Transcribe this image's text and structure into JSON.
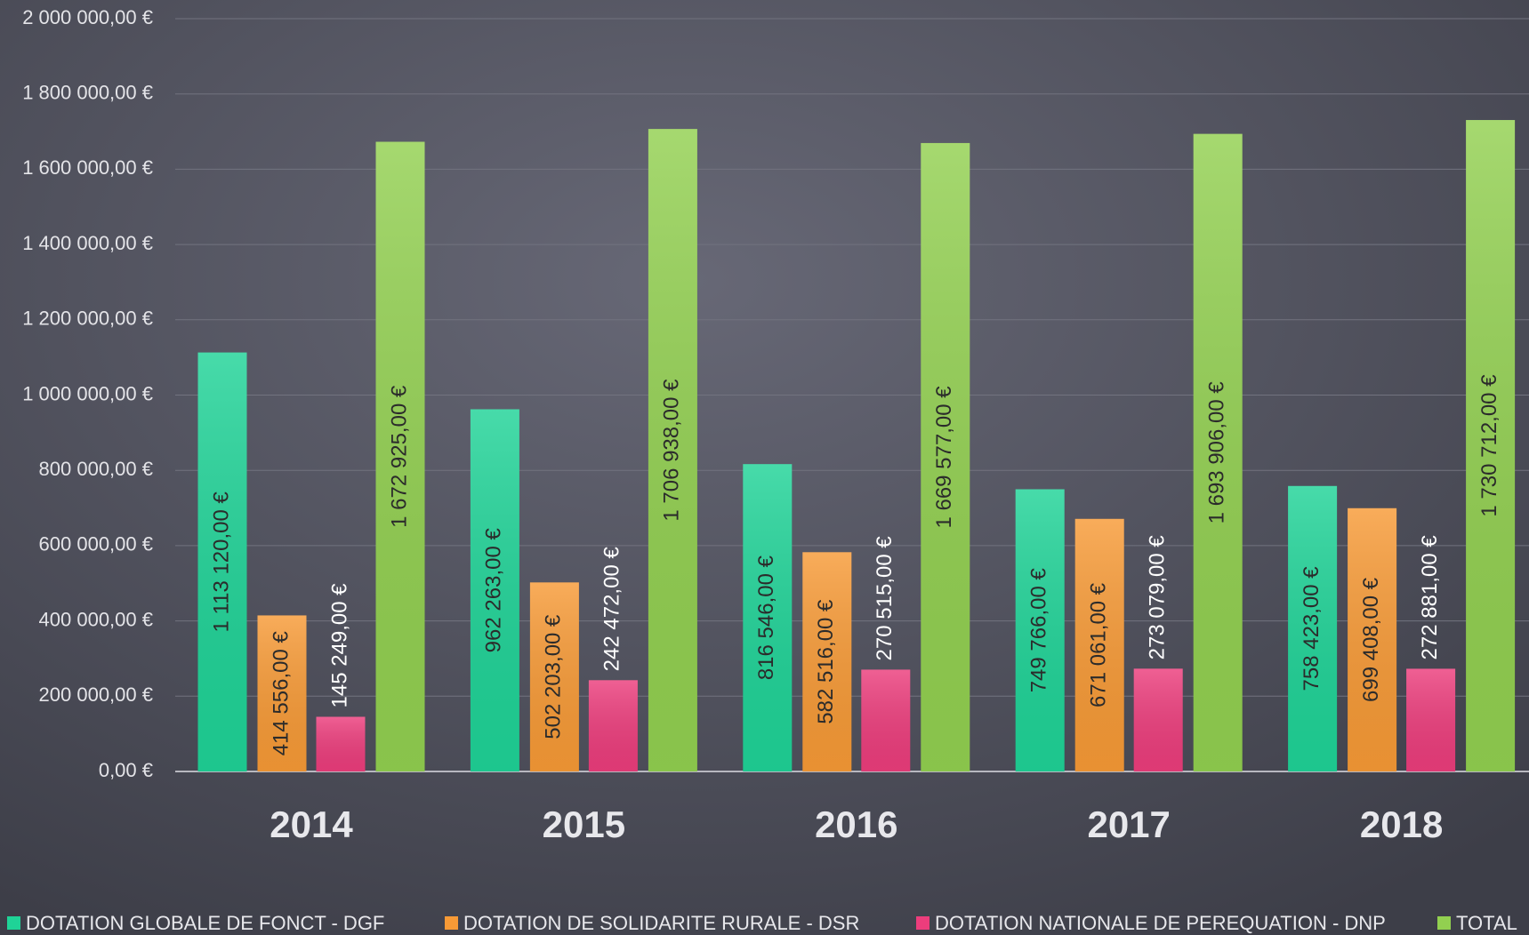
{
  "chart_data": {
    "type": "bar",
    "categories": [
      "2014",
      "2015",
      "2016",
      "2017",
      "2018"
    ],
    "series": [
      {
        "name": "DOTATION GLOBALE DE FONCT - DGF",
        "color": "#1fd397",
        "values": [
          1113120,
          962263,
          816546,
          749766,
          758423
        ],
        "value_labels": [
          "1 113 120,00 €",
          "962 263,00 €",
          "816 546,00 €",
          "749 766,00 €",
          "758 423,00 €"
        ]
      },
      {
        "name": "DOTATION DE SOLIDARITE RURALE - DSR",
        "color": "#f79a36",
        "values": [
          414556,
          502203,
          582516,
          671061,
          699408
        ],
        "value_labels": [
          "414 556,00 €",
          "502 203,00 €",
          "582 516,00 €",
          "671 061,00 €",
          "699 408,00 €"
        ]
      },
      {
        "name": "DOTATION NATIONALE DE PEREQUATION - DNP",
        "color": "#ec3d7c",
        "values": [
          145249,
          242472,
          270515,
          273079,
          272881
        ],
        "value_labels": [
          "145 249,00 €",
          "242 472,00 €",
          "270 515,00 €",
          "273 079,00 €",
          "272 881,00 €"
        ]
      },
      {
        "name": "TOTAL",
        "color": "#92d050",
        "values": [
          1672925,
          1706938,
          1669577,
          1693906,
          1730712
        ],
        "value_labels": [
          "1 672 925,00 €",
          "1 706 938,00 €",
          "1 669 577,00 €",
          "1 693 906,00 €",
          "1 730 712,00 €"
        ]
      }
    ],
    "ylim": [
      0,
      2000000
    ],
    "yticks": [
      {
        "value": 0,
        "label": "0,00 €"
      },
      {
        "value": 200000,
        "label": "200 000,00 €"
      },
      {
        "value": 400000,
        "label": "400 000,00 €"
      },
      {
        "value": 600000,
        "label": "600 000,00 €"
      },
      {
        "value": 800000,
        "label": "800 000,00 €"
      },
      {
        "value": 1000000,
        "label": "1 000 000,00 €"
      },
      {
        "value": 1200000,
        "label": "1 200 000,00 €"
      },
      {
        "value": 1400000,
        "label": "1 400 000,00 €"
      },
      {
        "value": 1600000,
        "label": "1 600 000,00 €"
      },
      {
        "value": 1800000,
        "label": "1 800 000,00 €"
      },
      {
        "value": 2000000,
        "label": "2 000 000,00 €"
      }
    ],
    "grid": true,
    "legend": "bottom"
  }
}
